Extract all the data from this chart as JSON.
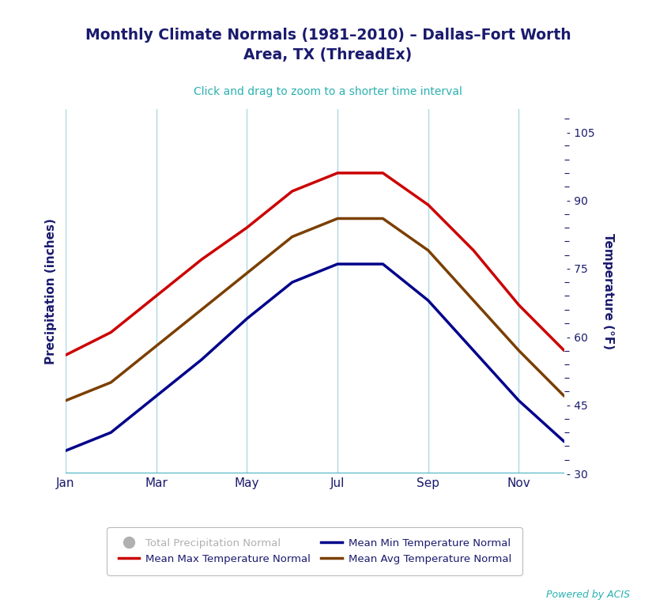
{
  "title": "Monthly Climate Normals (1981–2010) – Dallas–Fort Worth\nArea, TX (ThreadEx)",
  "subtitle": "Click and drag to zoom to a shorter time interval",
  "title_color": "#1a1a6e",
  "subtitle_color": "#2ab0b0",
  "background_color": "#ffffff",
  "plot_bg_color": "#ffffff",
  "month_indices": [
    1,
    2,
    3,
    4,
    5,
    6,
    7,
    8,
    9,
    10,
    11,
    12
  ],
  "mean_max": [
    56,
    61,
    69,
    77,
    84,
    92,
    96,
    96,
    89,
    79,
    67,
    57
  ],
  "mean_min": [
    35,
    39,
    47,
    55,
    64,
    72,
    76,
    76,
    68,
    57,
    46,
    37
  ],
  "mean_avg": [
    46,
    50,
    58,
    66,
    74,
    82,
    86,
    86,
    79,
    68,
    57,
    47
  ],
  "mean_max_color": "#cc0000",
  "mean_min_color": "#00008b",
  "mean_avg_color": "#7b3f00",
  "precip_color": "#b0b0b0",
  "axis_label_color": "#1a1a6e",
  "tick_color": "#1a1a6e",
  "grid_color": "#add8e6",
  "bottom_line_color": "#40b0c0",
  "ylabel_left": "Precipitation (inches)",
  "ylabel_right": "Temperature (°F)",
  "ylim": [
    30,
    110
  ],
  "yticks_right": [
    30,
    45,
    60,
    75,
    90,
    105
  ],
  "xlim": [
    1,
    12
  ],
  "xtick_labels": [
    "Jan",
    "Mar",
    "May",
    "Jul",
    "Sep",
    "Nov"
  ],
  "xtick_positions": [
    1,
    3,
    5,
    7,
    9,
    11
  ],
  "vgrid_positions": [
    1,
    3,
    5,
    7,
    9,
    11
  ],
  "line_width": 2.5,
  "powered_text": "Powered by ACIS",
  "powered_color": "#2ab0b0",
  "legend_border_color": "#aaaaaa",
  "legend_bg": "#ffffff"
}
